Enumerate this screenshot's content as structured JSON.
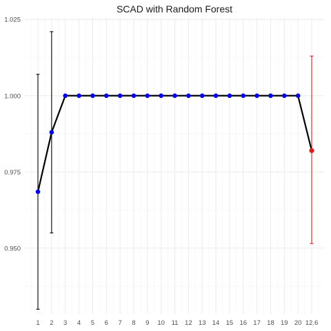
{
  "chart_data": {
    "type": "line",
    "title": "SCAD with Random Forest",
    "xlabel": "",
    "ylabel": "",
    "x_tick_labels": [
      "1",
      "2",
      "3",
      "4",
      "5",
      "6",
      "7",
      "8",
      "9",
      "10",
      "11",
      "12",
      "13",
      "14",
      "15",
      "16",
      "17",
      "18",
      "19",
      "20",
      "12.6"
    ],
    "y_ticks": [
      0.95,
      0.975,
      1.0,
      1.025
    ],
    "y_tick_labels": [
      "0.950",
      "0.975",
      "1.000",
      "1.025"
    ],
    "ylim": [
      0.9285,
      1.0255
    ],
    "grid": true,
    "legend": "none",
    "series": [
      {
        "x": [
          "1",
          "2",
          "3",
          "4",
          "5",
          "6",
          "7",
          "8",
          "9",
          "10",
          "11",
          "12",
          "13",
          "14",
          "15",
          "16",
          "17",
          "18",
          "19",
          "20"
        ],
        "values": [
          0.9685,
          0.988,
          1.0,
          1.0,
          1.0,
          1.0,
          1.0,
          1.0,
          1.0,
          1.0,
          1.0,
          1.0,
          1.0,
          1.0,
          1.0,
          1.0,
          1.0,
          1.0,
          1.0,
          1.0
        ],
        "color": "#0000ff",
        "error_bars": [
          {
            "x": "1",
            "low": 0.93,
            "high": 1.007
          },
          {
            "x": "2",
            "low": 0.955,
            "high": 1.021
          }
        ],
        "error_color": "#000000"
      }
    ],
    "highlight_point": {
      "x": "12.6",
      "value": 0.982,
      "low": 0.9515,
      "high": 1.013,
      "color": "#e41a1c"
    },
    "line_color": "#000000"
  }
}
